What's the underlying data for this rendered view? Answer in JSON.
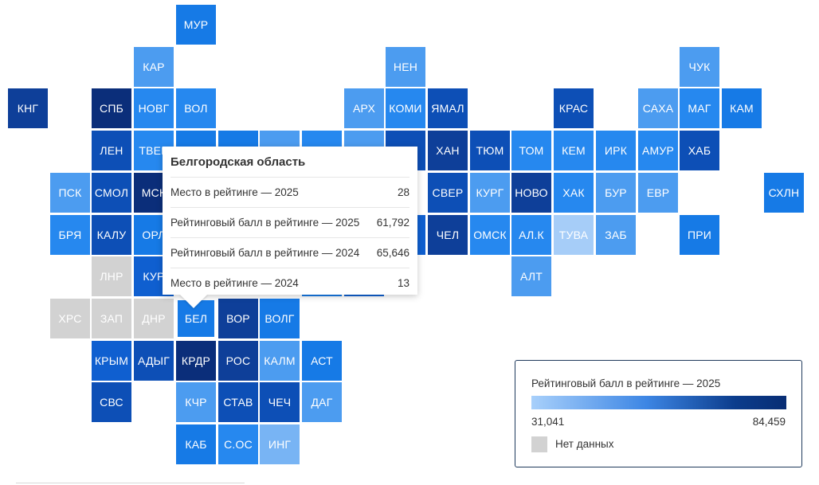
{
  "colors": {
    "c1": "#0b2e7a",
    "c2": "#0e3f99",
    "c3": "#0d4fb6",
    "c4": "#0f5fd0",
    "c5": "#167ae6",
    "c6": "#2688ef",
    "c7": "#4c9cf0",
    "c8": "#78b4f4",
    "c9": "#a6cdf8",
    "nodata": "#d2d2d2"
  },
  "tiles": [
    {
      "label": "МУР",
      "c": 4,
      "r": 0,
      "color": "c5"
    },
    {
      "label": "КАР",
      "c": 3,
      "r": 1,
      "color": "c7"
    },
    {
      "label": "НЕН",
      "c": 9,
      "r": 1,
      "color": "c7"
    },
    {
      "label": "ЧУК",
      "c": 16,
      "r": 1,
      "color": "c7"
    },
    {
      "label": "КНГ",
      "c": 0,
      "r": 2,
      "color": "c2"
    },
    {
      "label": "СПБ",
      "c": 2,
      "r": 2,
      "color": "c1"
    },
    {
      "label": "НОВГ",
      "c": 3,
      "r": 2,
      "color": "c6"
    },
    {
      "label": "ВОЛ",
      "c": 4,
      "r": 2,
      "color": "c6"
    },
    {
      "label": "АРХ",
      "c": 8,
      "r": 2,
      "color": "c7"
    },
    {
      "label": "КОМИ",
      "c": 9,
      "r": 2,
      "color": "c6"
    },
    {
      "label": "ЯМАЛ",
      "c": 10,
      "r": 2,
      "color": "c3"
    },
    {
      "label": "КРАС",
      "c": 13,
      "r": 2,
      "color": "c3"
    },
    {
      "label": "САХА",
      "c": 15,
      "r": 2,
      "color": "c7"
    },
    {
      "label": "МАГ",
      "c": 16,
      "r": 2,
      "color": "c6"
    },
    {
      "label": "КАМ",
      "c": 17,
      "r": 2,
      "color": "c5"
    },
    {
      "label": "ЛЕН",
      "c": 2,
      "r": 3,
      "color": "c3"
    },
    {
      "label": "ТВЕР",
      "c": 3,
      "r": 3,
      "color": "c6"
    },
    {
      "label": "",
      "c": 4,
      "r": 3,
      "color": "c5"
    },
    {
      "label": "",
      "c": 5,
      "r": 3,
      "color": "c5"
    },
    {
      "label": "",
      "c": 6,
      "r": 3,
      "color": "c7"
    },
    {
      "label": "",
      "c": 7,
      "r": 3,
      "color": "c6"
    },
    {
      "label": "",
      "c": 8,
      "r": 3,
      "color": "c7"
    },
    {
      "label": "",
      "c": 9,
      "r": 3,
      "color": "c3"
    },
    {
      "label": "ХАН",
      "c": 10,
      "r": 3,
      "color": "c2"
    },
    {
      "label": "ТЮМ",
      "c": 11,
      "r": 3,
      "color": "c3"
    },
    {
      "label": "ТОМ",
      "c": 12,
      "r": 3,
      "color": "c6"
    },
    {
      "label": "КЕМ",
      "c": 13,
      "r": 3,
      "color": "c6"
    },
    {
      "label": "ИРК",
      "c": 14,
      "r": 3,
      "color": "c6"
    },
    {
      "label": "АМУР",
      "c": 15,
      "r": 3,
      "color": "c6"
    },
    {
      "label": "ХАБ",
      "c": 16,
      "r": 3,
      "color": "c3"
    },
    {
      "label": "ПСК",
      "c": 1,
      "r": 4,
      "color": "c7"
    },
    {
      "label": "СМОЛ",
      "c": 2,
      "r": 4,
      "color": "c3"
    },
    {
      "label": "МСК",
      "c": 3,
      "r": 4,
      "color": "c1"
    },
    {
      "label": "СВЕР",
      "c": 10,
      "r": 4,
      "color": "c3"
    },
    {
      "label": "КУРГ",
      "c": 11,
      "r": 4,
      "color": "c7"
    },
    {
      "label": "НОВО",
      "c": 12,
      "r": 4,
      "color": "c2"
    },
    {
      "label": "ХАК",
      "c": 13,
      "r": 4,
      "color": "c6"
    },
    {
      "label": "БУР",
      "c": 14,
      "r": 4,
      "color": "c7"
    },
    {
      "label": "ЕВР",
      "c": 15,
      "r": 4,
      "color": "c7"
    },
    {
      "label": "СХЛН",
      "c": 18,
      "r": 4,
      "color": "c5"
    },
    {
      "label": "БРЯ",
      "c": 1,
      "r": 5,
      "color": "c6"
    },
    {
      "label": "КАЛУ",
      "c": 2,
      "r": 5,
      "color": "c3"
    },
    {
      "label": "ОРЛ",
      "c": 3,
      "r": 5,
      "color": "c5"
    },
    {
      "label": "",
      "c": 9,
      "r": 5,
      "color": "c4"
    },
    {
      "label": "ЧЕЛ",
      "c": 10,
      "r": 5,
      "color": "c2"
    },
    {
      "label": "ОМСК",
      "c": 11,
      "r": 5,
      "color": "c6"
    },
    {
      "label": "АЛ.К",
      "c": 12,
      "r": 5,
      "color": "c6"
    },
    {
      "label": "ТУВА",
      "c": 13,
      "r": 5,
      "color": "c9"
    },
    {
      "label": "ЗАБ",
      "c": 14,
      "r": 5,
      "color": "c7"
    },
    {
      "label": "ПРИ",
      "c": 16,
      "r": 5,
      "color": "c5"
    },
    {
      "label": "ЛНР",
      "c": 2,
      "r": 6,
      "color": "nodata"
    },
    {
      "label": "КУР",
      "c": 3,
      "r": 6,
      "color": "c4"
    },
    {
      "label": "",
      "c": 7,
      "r": 6,
      "color": "c5"
    },
    {
      "label": "",
      "c": 8,
      "r": 6,
      "color": "c4"
    },
    {
      "label": "АЛТ",
      "c": 12,
      "r": 6,
      "color": "c7"
    },
    {
      "label": "ХРС",
      "c": 1,
      "r": 7,
      "color": "nodata"
    },
    {
      "label": "ЗАП",
      "c": 2,
      "r": 7,
      "color": "nodata"
    },
    {
      "label": "ДНР",
      "c": 3,
      "r": 7,
      "color": "nodata"
    },
    {
      "label": "БЕЛ",
      "c": 4,
      "r": 7,
      "color": "c5",
      "active": true
    },
    {
      "label": "ВОР",
      "c": 5,
      "r": 7,
      "color": "c2"
    },
    {
      "label": "ВОЛГ",
      "c": 6,
      "r": 7,
      "color": "c5"
    },
    {
      "label": "КРЫМ",
      "c": 2,
      "r": 8,
      "color": "c4"
    },
    {
      "label": "АДЫГ",
      "c": 3,
      "r": 8,
      "color": "c3"
    },
    {
      "label": "КРДР",
      "c": 4,
      "r": 8,
      "color": "c1"
    },
    {
      "label": "РОС",
      "c": 5,
      "r": 8,
      "color": "c2"
    },
    {
      "label": "КАЛМ",
      "c": 6,
      "r": 8,
      "color": "c7"
    },
    {
      "label": "АСТ",
      "c": 7,
      "r": 8,
      "color": "c5"
    },
    {
      "label": "СВС",
      "c": 2,
      "r": 9,
      "color": "c3"
    },
    {
      "label": "КЧР",
      "c": 4,
      "r": 9,
      "color": "c7"
    },
    {
      "label": "СТАВ",
      "c": 5,
      "r": 9,
      "color": "c3"
    },
    {
      "label": "ЧЕЧ",
      "c": 6,
      "r": 9,
      "color": "c3"
    },
    {
      "label": "ДАГ",
      "c": 7,
      "r": 9,
      "color": "c7"
    },
    {
      "label": "КАБ",
      "c": 4,
      "r": 10,
      "color": "c5"
    },
    {
      "label": "С.ОС",
      "c": 5,
      "r": 10,
      "color": "c6"
    },
    {
      "label": "ИНГ",
      "c": 6,
      "r": 10,
      "color": "c8"
    }
  ],
  "tooltip": {
    "title": "Белгородская область",
    "rows": [
      {
        "label": "Место в рейтинге — 2025",
        "value": "28"
      },
      {
        "label": "Рейтинговый балл в рейтинге — 2025",
        "value": "61,792"
      },
      {
        "label": "Рейтинговый балл в рейтинге — 2024",
        "value": "65,646"
      },
      {
        "label": "Место в рейтинге — 2024",
        "value": "13"
      }
    ]
  },
  "legend": {
    "title": "Рейтинговый балл в рейтинге — 2025",
    "min": "31,041",
    "max": "84,459",
    "nodata_label": "Нет данных"
  }
}
